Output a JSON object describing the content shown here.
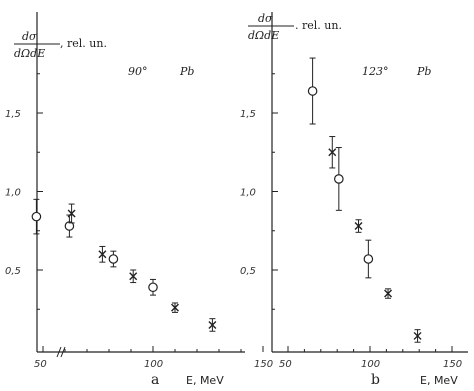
{
  "chart_data": [
    {
      "type": "scatter",
      "panel_label": "a",
      "annotation": {
        "angle": "90°",
        "element": "Pb"
      },
      "ylabel": {
        "numerator": "dσ",
        "denominator": "dΩdE",
        "unit": ", rel. un."
      },
      "xlabel": "E, MeV",
      "xlim": [
        40,
        155
      ],
      "ylim": [
        0.0,
        1.95
      ],
      "x_ticks": [
        "50",
        "100",
        "150"
      ],
      "x_tick_values": [
        50,
        100,
        150
      ],
      "y_ticks": [
        "0,5",
        "1,0",
        "1,5"
      ],
      "y_tick_values": [
        0.5,
        1.0,
        1.5
      ],
      "axis_break": true,
      "series": [
        {
          "marker": "circle",
          "points": [
            {
              "x": 47,
              "y": 0.84,
              "err": 0.11
            },
            {
              "x": 62,
              "y": 0.78,
              "err": 0.07
            },
            {
              "x": 82,
              "y": 0.57,
              "err": 0.05
            },
            {
              "x": 100,
              "y": 0.39,
              "err": 0.05
            }
          ]
        },
        {
          "marker": "cross",
          "points": [
            {
              "x": 63,
              "y": 0.86,
              "err": 0.06
            },
            {
              "x": 77,
              "y": 0.6,
              "err": 0.05
            },
            {
              "x": 91,
              "y": 0.46,
              "err": 0.04
            },
            {
              "x": 110,
              "y": 0.26,
              "err": 0.03
            },
            {
              "x": 127,
              "y": 0.15,
              "err": 0.04
            }
          ]
        }
      ]
    },
    {
      "type": "scatter",
      "panel_label": "b",
      "annotation": {
        "angle": "123°",
        "element": "Pb"
      },
      "ylabel": {
        "numerator": "dσ",
        "denominator": "dΩdE",
        "unit": ". rel. un."
      },
      "xlabel": "E, MeV",
      "xlim": [
        40,
        155
      ],
      "ylim": [
        0.0,
        1.95
      ],
      "x_ticks": [
        "50",
        "100",
        "150"
      ],
      "x_tick_values": [
        50,
        100,
        150
      ],
      "y_ticks": [
        "0,5",
        "1,0",
        "1,5"
      ],
      "y_tick_values": [
        0.5,
        1.0,
        1.5
      ],
      "axis_break": false,
      "series": [
        {
          "marker": "circle",
          "points": [
            {
              "x": 65,
              "y": 1.64,
              "err": 0.21
            },
            {
              "x": 81,
              "y": 1.08,
              "err": 0.2
            },
            {
              "x": 99,
              "y": 0.57,
              "err": 0.12
            }
          ]
        },
        {
          "marker": "cross",
          "points": [
            {
              "x": 77,
              "y": 1.25,
              "err": 0.1
            },
            {
              "x": 93,
              "y": 0.78,
              "err": 0.04
            },
            {
              "x": 111,
              "y": 0.35,
              "err": 0.03
            },
            {
              "x": 129,
              "y": 0.08,
              "err": 0.04
            }
          ]
        }
      ]
    }
  ]
}
